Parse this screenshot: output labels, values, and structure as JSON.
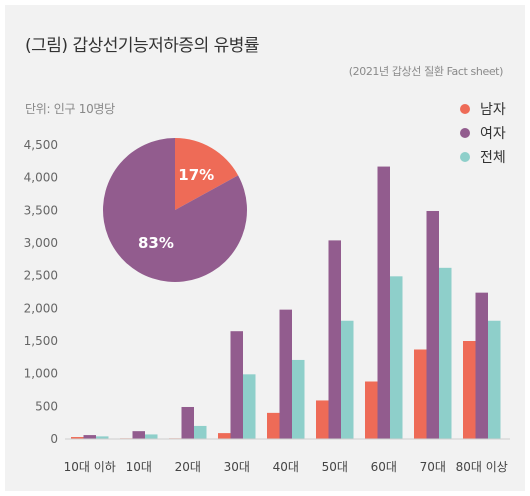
{
  "title": "(그림) 갑상선기능저하증의 유병률",
  "source": "(2021년 갑상선 질환 Fact sheet)",
  "unit": "단위: 인구 10명당",
  "colors": {
    "male": "#ee6b57",
    "female": "#925c8e",
    "total": "#8ecfca",
    "background": "#f2f2f2"
  },
  "legend": [
    {
      "label": "남자",
      "color": "#ee6b57"
    },
    {
      "label": "여자",
      "color": "#925c8e"
    },
    {
      "label": "전체",
      "color": "#8ecfca"
    }
  ],
  "chart_data": [
    {
      "type": "bar",
      "categories": [
        "10대 이하",
        "10대",
        "20대",
        "30대",
        "40대",
        "50대",
        "60대",
        "70대",
        "80대 이상"
      ],
      "series": [
        {
          "name": "남자",
          "values": [
            30,
            10,
            10,
            90,
            400,
            590,
            880,
            1370,
            1500
          ]
        },
        {
          "name": "여자",
          "values": [
            60,
            120,
            490,
            1650,
            1980,
            3040,
            4170,
            3490,
            2240
          ]
        },
        {
          "name": "전체",
          "values": [
            40,
            70,
            200,
            990,
            1210,
            1810,
            2490,
            2620,
            1810
          ]
        }
      ],
      "yticks": [
        "0",
        "500",
        "1,000",
        "1,500",
        "2,000",
        "2,500",
        "3,000",
        "3,500",
        "4,000",
        "4,500"
      ],
      "ylim": [
        0,
        4500
      ],
      "grid": false,
      "legend_position": "top-right"
    },
    {
      "type": "pie",
      "labels": [
        "17%",
        "83%"
      ],
      "values": [
        17,
        83
      ],
      "colors": [
        "#ee6b57",
        "#925c8e"
      ]
    }
  ]
}
